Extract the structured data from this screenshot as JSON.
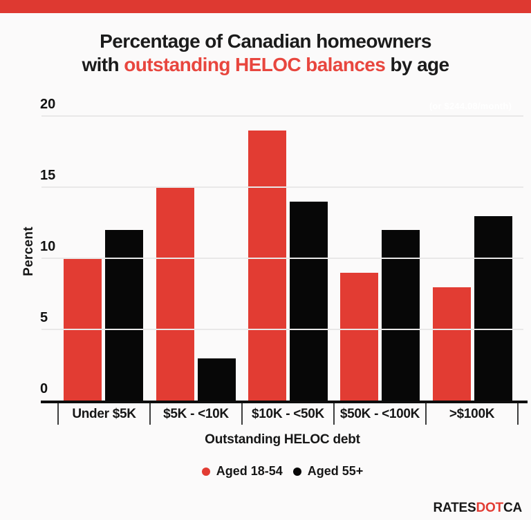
{
  "title": {
    "line1": "Percentage of Canadian homeowners",
    "line2_prefix": "with ",
    "line2_highlight": "outstanding HELOC balances",
    "line2_suffix": " by age"
  },
  "watermark": "(or $244.08/month)",
  "chart_data": {
    "type": "bar",
    "title": "Percentage of Canadian homeowners with outstanding HELOC balances by age",
    "categories": [
      "Under $5K",
      "$5K - <10K",
      "$10K - <50K",
      "$50K - <100K",
      ">$100K"
    ],
    "series": [
      {
        "name": "Aged 18-54",
        "color": "#e23c33",
        "values": [
          10,
          15,
          19,
          9,
          8
        ]
      },
      {
        "name": "Aged 55+",
        "color": "#070707",
        "values": [
          12,
          3,
          14,
          12,
          13
        ]
      }
    ],
    "xlabel": "Outstanding HELOC debt",
    "ylabel": "Percent",
    "ylim": [
      0,
      20
    ],
    "yticks": [
      0,
      5,
      10,
      15,
      20
    ],
    "grid": true,
    "legend_position": "bottom"
  },
  "logo": {
    "part1": "RATES",
    "part2": "DOT",
    "part3": "CA"
  },
  "colors": {
    "banner": "#de3931",
    "accent_red": "#e23c33",
    "title_red": "#e8463e",
    "gridline": "#e9e8e8",
    "background": "#fbfafa"
  }
}
